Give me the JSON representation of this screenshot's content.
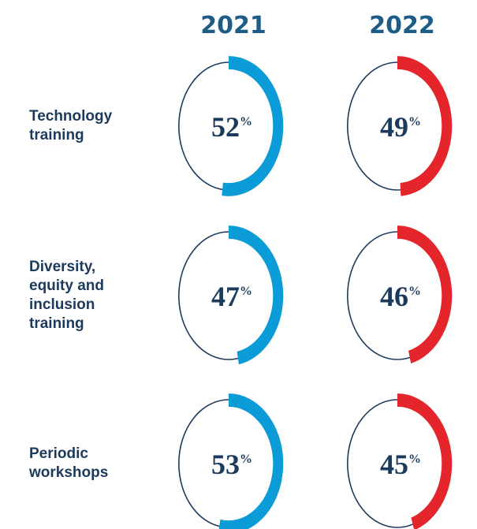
{
  "chart_data": {
    "type": "ring",
    "categories": [
      "Technology training",
      "Diversity, equity and inclusion training",
      "Periodic workshops"
    ],
    "series": [
      {
        "name": "2021",
        "color": "#0b9bd7",
        "values": [
          52,
          47,
          53
        ]
      },
      {
        "name": "2022",
        "color": "#e4252c",
        "values": [
          49,
          46,
          45
        ]
      }
    ],
    "unit": "%"
  }
}
